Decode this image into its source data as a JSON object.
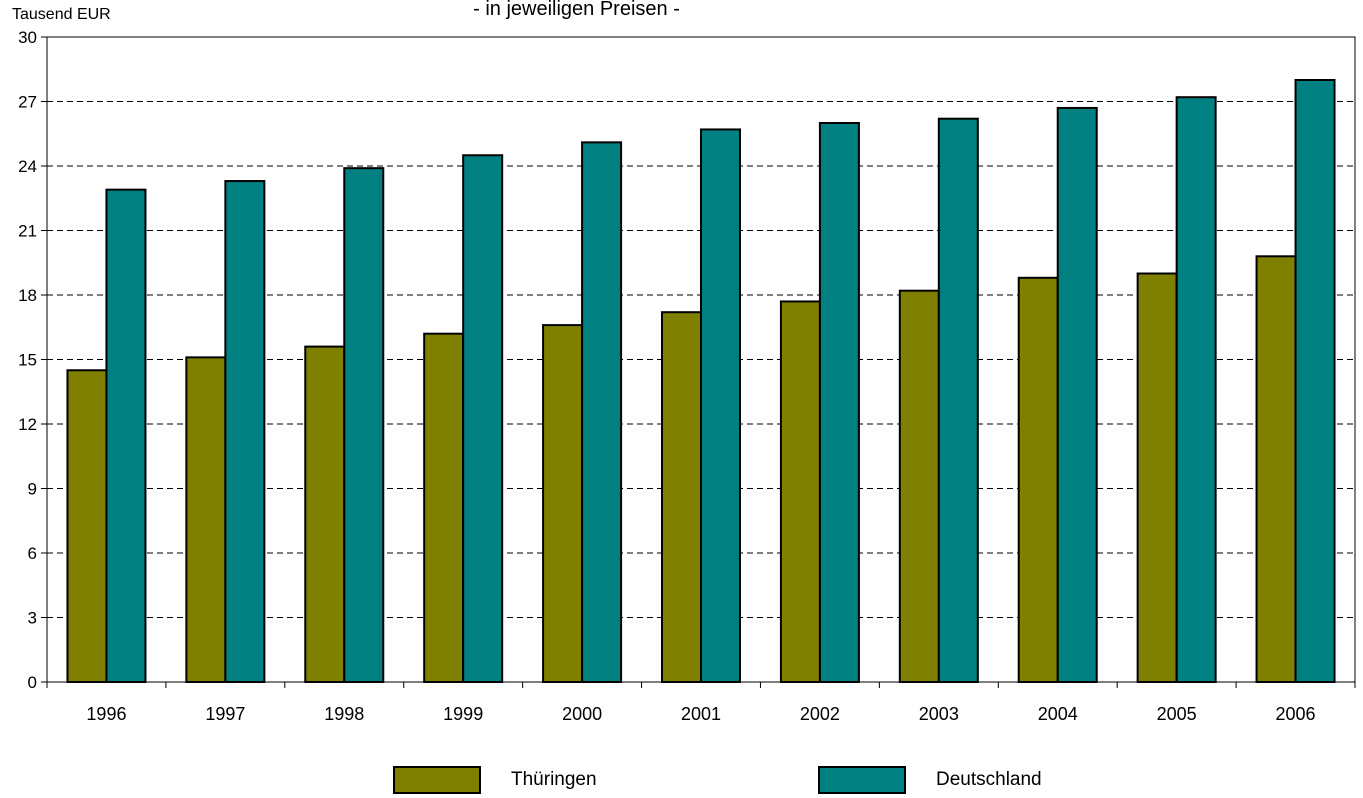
{
  "subtitle": "- in jeweiligen Preisen  -",
  "unit_label": "Tausend EUR",
  "chart_data": {
    "type": "bar",
    "categories": [
      "1996",
      "1997",
      "1998",
      "1999",
      "2000",
      "2001",
      "2002",
      "2003",
      "2004",
      "2005",
      "2006"
    ],
    "series": [
      {
        "name": "Thüringen",
        "color": "#808000",
        "values": [
          14.5,
          15.1,
          15.6,
          16.2,
          16.6,
          17.2,
          17.7,
          18.2,
          18.8,
          19.0,
          19.8
        ]
      },
      {
        "name": "Deutschland",
        "color": "#008080",
        "values": [
          22.9,
          23.3,
          23.9,
          24.5,
          25.1,
          25.7,
          26.0,
          26.2,
          26.7,
          27.2,
          28.0
        ]
      }
    ],
    "ylim": [
      0,
      30
    ],
    "yticks": [
      0,
      3,
      6,
      9,
      12,
      15,
      18,
      21,
      24,
      27,
      30
    ],
    "ylabel": "Tausend EUR",
    "grid": true,
    "legend": "bottom"
  }
}
